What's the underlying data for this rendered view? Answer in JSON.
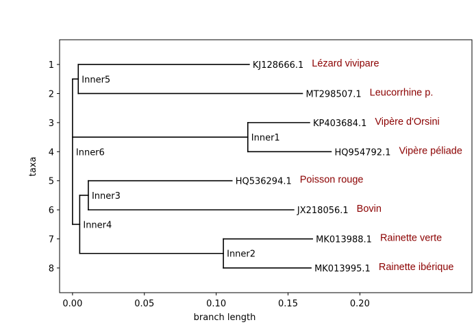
{
  "chart_data": {
    "type": "dendrogram",
    "xlabel": "branch length",
    "ylabel": "taxa",
    "xlim": [
      -0.009,
      0.278
    ],
    "ylim": [
      8.85,
      0.15
    ],
    "xticks": [
      0.0,
      0.05,
      0.1,
      0.15,
      0.2
    ],
    "xtick_labels": [
      "0.00",
      "0.05",
      "0.10",
      "0.15",
      "0.20"
    ],
    "yticks": [
      1,
      2,
      3,
      4,
      5,
      6,
      7,
      8
    ],
    "ytick_labels": [
      "1",
      "2",
      "3",
      "4",
      "5",
      "6",
      "7",
      "8"
    ],
    "line_color": "#000000",
    "annotation_color": "#8b0000",
    "leaves": [
      {
        "name": "KJ128666.1",
        "y": 1,
        "x": 0.123,
        "common_name": "Lézard vivipare"
      },
      {
        "name": "MT298507.1",
        "y": 2,
        "x": 0.16,
        "common_name": "Leucorrhine p."
      },
      {
        "name": "KP403684.1",
        "y": 3,
        "x": 0.165,
        "common_name": "Vipère d'Orsini"
      },
      {
        "name": "HQ954792.1",
        "y": 4,
        "x": 0.18,
        "common_name": "Vipère péliade"
      },
      {
        "name": "HQ536294.1",
        "y": 5,
        "x": 0.111,
        "common_name": "Poisson rouge"
      },
      {
        "name": "JX218056.1",
        "y": 6,
        "x": 0.154,
        "common_name": "Bovin"
      },
      {
        "name": "MK013988.1",
        "y": 7,
        "x": 0.167,
        "common_name": "Rainette verte"
      },
      {
        "name": "MK013995.1",
        "y": 8,
        "x": 0.166,
        "common_name": "Rainette ibérique"
      }
    ],
    "inner_nodes": [
      {
        "name": "Inner6",
        "x": 0.0,
        "parent": null,
        "children": [
          "Inner5",
          "Inner1",
          "Inner4"
        ]
      },
      {
        "name": "Inner5",
        "x": 0.004,
        "parent": "Inner6",
        "children": [
          "KJ128666.1",
          "MT298507.1"
        ]
      },
      {
        "name": "Inner1",
        "x": 0.122,
        "parent": "Inner6",
        "children": [
          "KP403684.1",
          "HQ954792.1"
        ]
      },
      {
        "name": "Inner4",
        "x": 0.005,
        "parent": "Inner6",
        "children": [
          "Inner3",
          "Inner2"
        ]
      },
      {
        "name": "Inner3",
        "x": 0.011,
        "parent": "Inner4",
        "children": [
          "HQ536294.1",
          "JX218056.1"
        ]
      },
      {
        "name": "Inner2",
        "x": 0.105,
        "parent": "Inner4",
        "children": [
          "MK013988.1",
          "MK013995.1"
        ]
      }
    ]
  }
}
